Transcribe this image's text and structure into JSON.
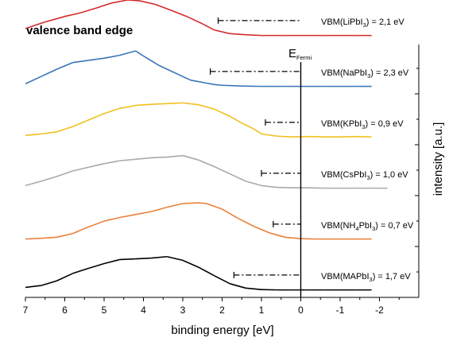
{
  "chart_data": {
    "type": "line",
    "title": "valence band edge",
    "xlabel": "binding energy [eV]",
    "ylabel": "intensity [a.u.]",
    "x_reversed": true,
    "xlim": [
      7,
      -3
    ],
    "xticks": [
      7,
      6,
      5,
      4,
      3,
      2,
      1,
      0,
      -1,
      -2
    ],
    "xtick_labels": [
      "7",
      "6",
      "5",
      "4",
      "3",
      "2",
      "1",
      "0",
      "-1",
      "-2"
    ],
    "fermi_label": {
      "main": "E",
      "sub": "Fermi"
    },
    "fermi_x": 0,
    "grid": false,
    "series": [
      {
        "name": "LiPbI3",
        "color": "#d42a2a",
        "offset": 5,
        "x": [
          7.0,
          6.5,
          6.0,
          5.6,
          5.2,
          4.8,
          4.4,
          4.1,
          3.7,
          3.3,
          2.9,
          2.5,
          2.2,
          1.8,
          1.4,
          1.0,
          0.5,
          0.0,
          -0.5,
          -1.0,
          -1.4,
          -1.8
        ],
        "y": [
          0.22,
          0.4,
          0.55,
          0.65,
          0.78,
          0.92,
          1.0,
          0.98,
          0.88,
          0.72,
          0.55,
          0.35,
          0.18,
          0.08,
          0.05,
          0.03,
          0.03,
          0.03,
          0.03,
          0.03,
          0.03,
          0.03
        ],
        "vbm_label": {
          "pre": "VBM(LiPbI",
          "sub": "3",
          "post": ") = 2,1 eV"
        },
        "vbm": 2.1
      },
      {
        "name": "NaPbI3",
        "color": "#3a74b7",
        "offset": 4,
        "x": [
          7.0,
          6.6,
          6.2,
          5.8,
          5.4,
          5.0,
          4.6,
          4.2,
          4.0,
          3.6,
          3.2,
          2.8,
          2.4,
          2.2,
          2.0,
          1.5,
          1.0,
          0.5,
          0.0,
          -0.5,
          -1.0,
          -1.5,
          -1.8
        ],
        "y": [
          0.1,
          0.3,
          0.5,
          0.68,
          0.74,
          0.8,
          0.88,
          1.0,
          0.86,
          0.6,
          0.4,
          0.2,
          0.12,
          0.08,
          0.06,
          0.04,
          0.03,
          0.03,
          0.03,
          0.03,
          0.03,
          0.03,
          0.03
        ],
        "vbm_label": {
          "pre": "VBM(NaPbI",
          "sub": "3",
          "post": ") = 2,3 eV"
        },
        "vbm": 2.3
      },
      {
        "name": "KPbI3",
        "color": "#f0c020",
        "offset": 3,
        "x": [
          7.0,
          6.6,
          6.2,
          5.8,
          5.4,
          5.0,
          4.6,
          4.2,
          3.8,
          3.4,
          3.0,
          2.6,
          2.2,
          1.8,
          1.5,
          1.2,
          1.0,
          0.6,
          0.2,
          -0.2,
          -0.6,
          -1.0,
          -1.4,
          -1.8
        ],
        "y": [
          0.08,
          0.12,
          0.18,
          0.32,
          0.5,
          0.68,
          0.82,
          0.9,
          0.93,
          0.95,
          0.97,
          0.92,
          0.8,
          0.6,
          0.42,
          0.26,
          0.12,
          0.06,
          0.04,
          0.05,
          0.04,
          0.04,
          0.05,
          0.04
        ],
        "vbm_label": {
          "pre": "VBM(KPbI",
          "sub": "3",
          "post": ") = 0,9 eV"
        },
        "vbm": 0.9
      },
      {
        "name": "CsPbI3",
        "color": "#a9a9a9",
        "offset": 2,
        "x": [
          7.0,
          6.6,
          6.2,
          5.8,
          5.4,
          5.0,
          4.6,
          4.2,
          3.8,
          3.4,
          3.0,
          2.6,
          2.2,
          1.8,
          1.4,
          1.0,
          0.6,
          0.2,
          -0.2,
          -0.6,
          -1.0,
          -1.4,
          -1.8,
          -2.2
        ],
        "y": [
          0.1,
          0.22,
          0.35,
          0.5,
          0.6,
          0.7,
          0.78,
          0.82,
          0.86,
          0.88,
          0.92,
          0.8,
          0.62,
          0.42,
          0.22,
          0.1,
          0.05,
          0.04,
          0.04,
          0.03,
          0.03,
          0.03,
          0.03,
          0.03
        ],
        "vbm_label": {
          "pre": "VBM(CsPbI",
          "sub": "3",
          "post": ") = 1,0 eV"
        },
        "vbm": 1.0
      },
      {
        "name": "NH4PbI3",
        "color": "#e9803a",
        "offset": 1,
        "x": [
          7.0,
          6.6,
          6.2,
          5.8,
          5.4,
          5.0,
          4.6,
          4.2,
          3.8,
          3.4,
          3.0,
          2.6,
          2.4,
          2.0,
          1.6,
          1.2,
          0.8,
          0.4,
          0.0,
          -0.4,
          -0.8,
          -1.2,
          -1.6,
          -1.8
        ],
        "y": [
          0.03,
          0.05,
          0.08,
          0.18,
          0.36,
          0.52,
          0.62,
          0.7,
          0.78,
          0.9,
          1.0,
          1.02,
          1.0,
          0.85,
          0.6,
          0.38,
          0.2,
          0.08,
          0.04,
          0.03,
          0.03,
          0.03,
          0.03,
          0.03
        ],
        "vbm_label": {
          "pre": "VBM(NH",
          "sub": "4",
          "mid": "PbI",
          "sub2": "3",
          "post": ") = 0,7 eV"
        },
        "vbm": 0.7
      },
      {
        "name": "MAPbI3",
        "color": "#000000",
        "offset": 0,
        "x": [
          7.0,
          6.6,
          6.2,
          5.8,
          5.4,
          5.0,
          4.6,
          4.2,
          3.8,
          3.4,
          3.0,
          2.6,
          2.2,
          1.8,
          1.4,
          1.0,
          0.6,
          0.2,
          -0.2,
          -0.6,
          -1.0,
          -1.4,
          -1.8
        ],
        "y": [
          0.1,
          0.15,
          0.28,
          0.48,
          0.62,
          0.75,
          0.86,
          0.88,
          0.9,
          0.94,
          0.84,
          0.65,
          0.42,
          0.2,
          0.08,
          0.04,
          0.03,
          0.03,
          0.03,
          0.03,
          0.03,
          0.03,
          0.03
        ],
        "vbm_label": {
          "pre": "VBM(MAPbI",
          "sub": "3",
          "post": ") = 1,7 eV"
        },
        "vbm": 1.7
      }
    ]
  }
}
